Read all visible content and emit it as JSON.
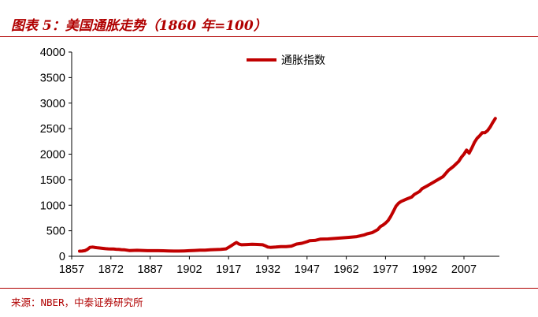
{
  "title": "图表 5：美国通胀走势（1860 年=100）",
  "source": "来源：NBER，中泰证券研究所",
  "colors": {
    "accent": "#b00000",
    "series": "#c00000"
  },
  "chart_data": {
    "type": "line",
    "title": "图表 5：美国通胀走势（1860 年=100）",
    "xlabel": "",
    "ylabel": "",
    "xlim": [
      1857,
      2020
    ],
    "ylim": [
      0,
      4000
    ],
    "x_ticks": [
      "1857",
      "1872",
      "1887",
      "1902",
      "1917",
      "1932",
      "1947",
      "1962",
      "1977",
      "1992",
      "2007"
    ],
    "y_ticks": [
      "0",
      "500",
      "1000",
      "1500",
      "2000",
      "2500",
      "3000",
      "3500",
      "4000"
    ],
    "legend": {
      "position": "top-center",
      "entries": [
        "通胀指数"
      ]
    },
    "grid": false,
    "series": [
      {
        "name": "通胀指数",
        "color": "#c00000",
        "x": [
          1860,
          1861,
          1862,
          1863,
          1864,
          1865,
          1866,
          1867,
          1868,
          1869,
          1870,
          1871,
          1872,
          1873,
          1874,
          1875,
          1876,
          1877,
          1878,
          1879,
          1880,
          1882,
          1884,
          1886,
          1888,
          1890,
          1892,
          1894,
          1896,
          1898,
          1900,
          1902,
          1904,
          1906,
          1908,
          1910,
          1912,
          1914,
          1916,
          1917,
          1918,
          1919,
          1920,
          1921,
          1922,
          1924,
          1926,
          1928,
          1930,
          1931,
          1932,
          1933,
          1935,
          1937,
          1939,
          1941,
          1943,
          1945,
          1947,
          1948,
          1950,
          1952,
          1955,
          1958,
          1960,
          1963,
          1966,
          1969,
          1970,
          1972,
          1974,
          1975,
          1976,
          1977,
          1978,
          1979,
          1980,
          1981,
          1982,
          1983,
          1985,
          1987,
          1988,
          1990,
          1991,
          1993,
          1995,
          1997,
          1999,
          2000,
          2001,
          2003,
          2005,
          2006,
          2007,
          2008,
          2009,
          2010,
          2011,
          2012,
          2013,
          2014,
          2015,
          2016,
          2017,
          2018,
          2019
        ],
        "y": [
          100,
          102,
          110,
          135,
          175,
          180,
          172,
          165,
          160,
          155,
          148,
          145,
          143,
          142,
          138,
          135,
          130,
          128,
          120,
          112,
          115,
          118,
          115,
          110,
          110,
          110,
          108,
          105,
          102,
          102,
          105,
          110,
          115,
          120,
          120,
          128,
          132,
          135,
          145,
          175,
          205,
          240,
          270,
          238,
          225,
          230,
          235,
          232,
          225,
          205,
          180,
          175,
          180,
          190,
          190,
          200,
          240,
          255,
          285,
          305,
          310,
          335,
          340,
          350,
          360,
          370,
          385,
          420,
          440,
          465,
          520,
          580,
          610,
          650,
          700,
          780,
          880,
          980,
          1040,
          1075,
          1120,
          1160,
          1210,
          1270,
          1325,
          1380,
          1440,
          1500,
          1560,
          1620,
          1680,
          1760,
          1860,
          1940,
          2000,
          2080,
          2020,
          2120,
          2230,
          2310,
          2360,
          2420,
          2420,
          2460,
          2530,
          2620,
          2700
        ]
      }
    ]
  }
}
